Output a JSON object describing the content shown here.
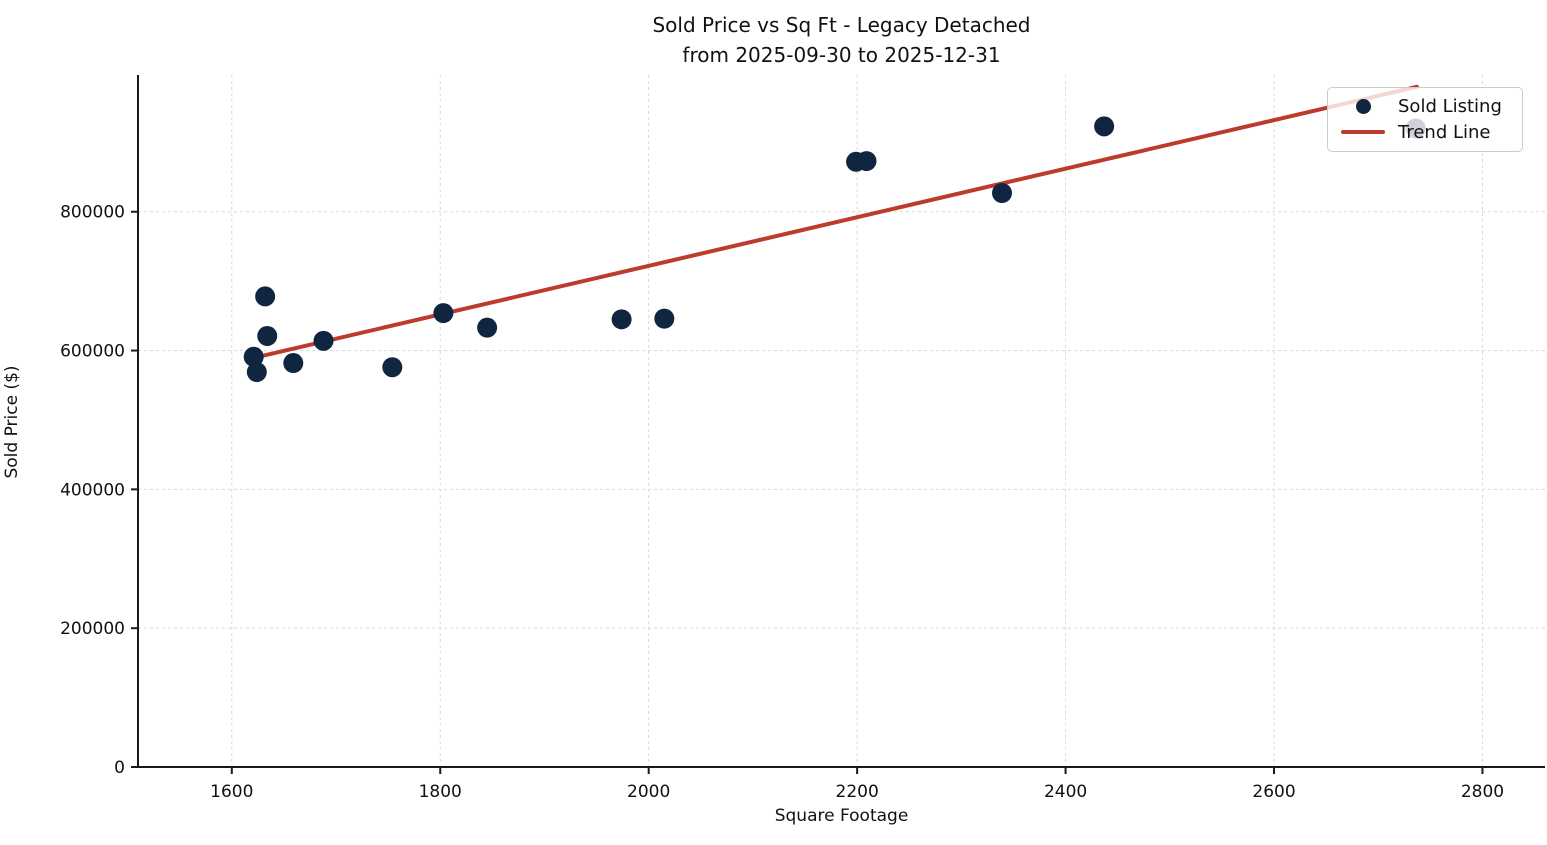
{
  "chart_data": {
    "type": "scatter",
    "title": "Sold Price vs Sq Ft - Legacy Detached",
    "subtitle": "from 2025-09-30 to 2025-12-31",
    "xlabel": "Square Footage",
    "ylabel": "Sold Price ($)",
    "xlim": [
      1510,
      2860
    ],
    "ylim": [
      0,
      997000
    ],
    "x_ticks": [
      1600,
      1800,
      2000,
      2200,
      2400,
      2600,
      2800
    ],
    "y_ticks": [
      0,
      200000,
      400000,
      600000,
      800000
    ],
    "grid": true,
    "legend_position": "upper right",
    "series": [
      {
        "name": "Sold Listing",
        "kind": "scatter",
        "color": "#10253f",
        "marker_radius": 10,
        "points": [
          {
            "sqft": 1621,
            "price": 591000
          },
          {
            "sqft": 1624,
            "price": 569000
          },
          {
            "sqft": 1632,
            "price": 678000
          },
          {
            "sqft": 1634,
            "price": 621000
          },
          {
            "sqft": 1659,
            "price": 582000
          },
          {
            "sqft": 1688,
            "price": 614000
          },
          {
            "sqft": 1754,
            "price": 576000
          },
          {
            "sqft": 1803,
            "price": 654000
          },
          {
            "sqft": 1845,
            "price": 633000
          },
          {
            "sqft": 1974,
            "price": 645000
          },
          {
            "sqft": 2015,
            "price": 646000
          },
          {
            "sqft": 2199,
            "price": 872000
          },
          {
            "sqft": 2209,
            "price": 873000
          },
          {
            "sqft": 2339,
            "price": 827000
          },
          {
            "sqft": 2437,
            "price": 923000
          },
          {
            "sqft": 2736,
            "price": 920000
          }
        ]
      },
      {
        "name": "Trend Line",
        "kind": "line",
        "color": "#bc3b2d",
        "line_width": 4,
        "points": [
          {
            "sqft": 1617,
            "price": 588000
          },
          {
            "sqft": 2737,
            "price": 980000
          }
        ]
      }
    ]
  },
  "legend": {
    "items": [
      {
        "label": "Sold Listing",
        "marker": "dot",
        "color": "#10253f"
      },
      {
        "label": "Trend Line",
        "marker": "line",
        "color": "#bc3b2d"
      }
    ]
  },
  "style_colors": {
    "scatter": "#10253f",
    "trend": "#bc3b2d",
    "grid": "#d9d9d9",
    "axis": "#1a1a1a",
    "text": "#111111"
  }
}
